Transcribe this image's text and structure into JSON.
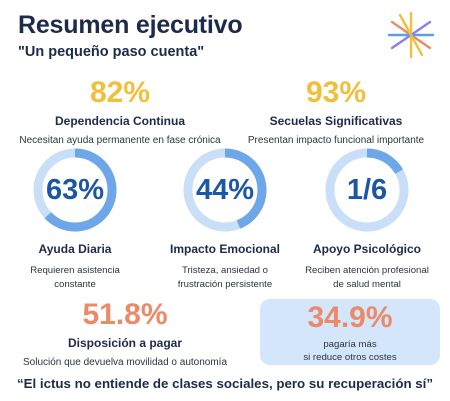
{
  "header": {
    "title": "Resumen ejecutivo",
    "subtitle": "\"Un pequeño paso cuenta\""
  },
  "logo": {
    "icon": "asterisk-logo-icon",
    "colors": [
      "#f2bf3a",
      "#ec8a67",
      "#8e7cf0",
      "#5aa0e8"
    ]
  },
  "stats_top": [
    {
      "value": "82%",
      "label": "Dependencia Continua",
      "desc": "Necesitan ayuda permanente en fase crónica",
      "color": "#f2bf3a"
    },
    {
      "value": "93%",
      "label": "Secuelas Significativas",
      "desc": "Presentan impacto funcional importante",
      "color": "#f2bf3a"
    }
  ],
  "rings": [
    {
      "value": "63%",
      "fraction": 0.63,
      "label": "Ayuda Diaria",
      "desc_line1": "Requieren asistencia",
      "desc_line2": "constante"
    },
    {
      "value": "44%",
      "fraction": 0.44,
      "label": "Impacto Emocional",
      "desc_line1": "Tristeza, ansiedad o",
      "desc_line2": "frustración persistente"
    },
    {
      "value": "1/6",
      "fraction": 0.1667,
      "label": "Apoyo Psicológico",
      "desc_line1": "Reciben atención profesional",
      "desc_line2": "de salud mental"
    }
  ],
  "stats_bottom": {
    "left": {
      "value": "51.8%",
      "label": "Disposición a pagar",
      "desc": "Solución que devuelva movilidad o autonomía"
    },
    "right": {
      "value": "34.9%",
      "desc_line1": "pagaría más",
      "desc_line2": "si reduce otros costes"
    }
  },
  "quote": "“El ictus no entiende de clases sociales, pero su recuperación sí”",
  "colors": {
    "ring_track": "#c9def7",
    "ring_fill": "#6ea6ea",
    "ring_text": "#1b57a6",
    "highlight_bg": "#d4e6fb"
  }
}
